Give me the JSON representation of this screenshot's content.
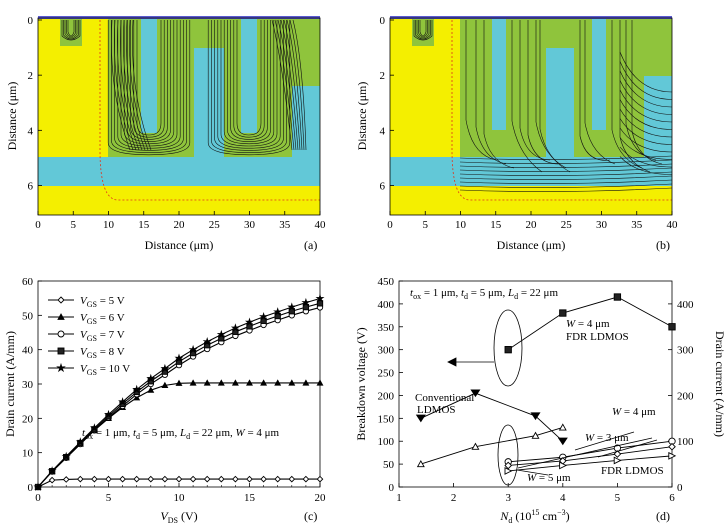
{
  "panels": {
    "a": {
      "letter": "(a)",
      "xlabel": "Distance (μm)",
      "ylabel": "Distance (μm)",
      "xticks": [
        "0",
        "5",
        "10",
        "15",
        "20",
        "25",
        "30",
        "35",
        "40"
      ],
      "yticks": [
        "0",
        "2",
        "4",
        "6"
      ]
    },
    "b": {
      "letter": "(b)",
      "xlabel": "Distance (μm)",
      "ylabel": "Distance (μm)",
      "xticks": [
        "0",
        "5",
        "10",
        "15",
        "20",
        "25",
        "30",
        "35",
        "40"
      ],
      "yticks": [
        "0",
        "2",
        "4",
        "6"
      ]
    },
    "c": {
      "letter": "(c)"
    },
    "d": {
      "letter": "(d)"
    }
  },
  "colors": {
    "silicon": "#f4ef00",
    "oxide": "#62c8d7",
    "drift": "#8fc43c",
    "contour": "#111111",
    "junction": "#e0331a"
  },
  "chart_data": [
    {
      "type": "line",
      "panel": "c",
      "xlabel_main": "V",
      "xlabel_sub": "DS",
      "xlabel_unit": " (V)",
      "ylabel": "Drain current (A/mm)",
      "xlim": [
        0,
        20
      ],
      "ylim": [
        0,
        60
      ],
      "xticks": [
        "0",
        "5",
        "10",
        "15",
        "20"
      ],
      "yticks": [
        "0",
        "10",
        "20",
        "30",
        "40",
        "50",
        "60"
      ],
      "legend_position": "top-left",
      "annotation": {
        "t1": "t",
        "s1": "ox",
        "v1": " = 1 μm, ",
        "t2": "t",
        "s2": "d",
        "v2": " = 5 μm, ",
        "t3": "L",
        "s3": "d",
        "v3": " = 22 μm, ",
        "t4": "W",
        "v4": " = 4 μm"
      },
      "x": [
        0,
        1,
        2,
        3,
        4,
        5,
        6,
        7,
        8,
        9,
        10,
        11,
        12,
        13,
        14,
        15,
        16,
        17,
        18,
        19,
        20
      ],
      "series": [
        {
          "name_main": "V",
          "name_sub": "GS",
          "name_val": " = 5 V",
          "marker": "diamond",
          "values": [
            0,
            2,
            2.2,
            2.3,
            2.3,
            2.3,
            2.3,
            2.3,
            2.3,
            2.3,
            2.3,
            2.3,
            2.3,
            2.3,
            2.3,
            2.3,
            2.3,
            2.3,
            2.3,
            2.3,
            2.3
          ]
        },
        {
          "name_main": "V",
          "name_sub": "GS",
          "name_val": " = 6 V",
          "marker": "triangle",
          "values": [
            0,
            4.5,
            8.5,
            12.5,
            16.5,
            20,
            23.2,
            26,
            28.2,
            29.6,
            30.2,
            30.3,
            30.3,
            30.3,
            30.3,
            30.3,
            30.3,
            30.3,
            30.3,
            30.3,
            30.3
          ]
        },
        {
          "name_main": "V",
          "name_sub": "GS",
          "name_val": " = 7 V",
          "marker": "circle",
          "values": [
            0,
            4.5,
            8.5,
            12.5,
            16.5,
            20.2,
            23.6,
            27,
            30,
            32.7,
            35.5,
            38,
            40.2,
            42.2,
            44,
            45.6,
            47.2,
            48.6,
            50,
            51.2,
            52.3
          ]
        },
        {
          "name_main": "V",
          "name_sub": "GS",
          "name_val": " = 8 V",
          "marker": "square",
          "values": [
            0,
            4.6,
            8.7,
            12.8,
            16.8,
            20.6,
            24.2,
            27.7,
            30.8,
            33.6,
            36.5,
            39,
            41.3,
            43.3,
            45.2,
            46.8,
            48.4,
            49.8,
            51.2,
            52.4,
            53.5
          ]
        },
        {
          "name_main": "V",
          "name_sub": "GS",
          "name_val": " = 10 V",
          "marker": "star",
          "values": [
            0,
            4.7,
            8.9,
            13.1,
            17.2,
            21.1,
            24.8,
            28.4,
            31.6,
            34.5,
            37.5,
            40,
            42.3,
            44.4,
            46.3,
            48,
            49.6,
            51,
            52.4,
            53.7,
            54.9
          ]
        }
      ]
    },
    {
      "type": "line",
      "panel": "d",
      "xlabel_main": "N",
      "xlabel_sub": "d",
      "xlabel_unit": " (10",
      "xlabel_sup": "15",
      "xlabel_end": " cm",
      "xlabel_sup2": "−3",
      "xlabel_close": ")",
      "ylabel": "Breakdown voltage (V)",
      "y2label": "Drain current (A/mm)",
      "xlim": [
        1,
        6
      ],
      "ylim": [
        0,
        450
      ],
      "y2lim": [
        0,
        450
      ],
      "xticks": [
        "1",
        "2",
        "3",
        "4",
        "5",
        "6"
      ],
      "yticks": [
        "0",
        "50",
        "100",
        "150",
        "200",
        "250",
        "300",
        "350",
        "400",
        "450"
      ],
      "y2ticks": [
        "0",
        "100",
        "200",
        "300",
        "400"
      ],
      "annotation": {
        "t1": "t",
        "s1": "ox",
        "v1": " = 1 μm, ",
        "t2": "t",
        "s2": "d",
        "v2": " = 5 μm, ",
        "t3": "L",
        "s3": "d",
        "v3": " = 22 μm"
      },
      "labels": {
        "fdr_bv_w": " = 4 μm",
        "fdr_bv_name": "FDR LDMOS",
        "conv_1": "Conventional",
        "conv_2": "LDMOS",
        "w4": " = 4 μm",
        "w3": " = 3 μm",
        "w5": " = 5 μm",
        "fdr_i": "FDR LDMOS",
        "wvar": "W"
      },
      "series": [
        {
          "name": "FDR LDMOS BV (W = 4 μm)",
          "axis": "left",
          "marker": "square",
          "x": [
            3,
            4,
            5,
            6
          ],
          "values": [
            300,
            380,
            415,
            350
          ]
        },
        {
          "name": "Conventional LDMOS BV",
          "axis": "left",
          "marker": "triangle-down",
          "x": [
            1.4,
            2.4,
            3.5,
            4
          ],
          "values": [
            150,
            205,
            155,
            100
          ]
        },
        {
          "name": "Conventional LDMOS current",
          "axis": "right",
          "marker": "triangle-open",
          "x": [
            1.4,
            2.4,
            3.5,
            4
          ],
          "values": [
            50,
            88,
            112,
            130
          ]
        },
        {
          "name": "FDR LDMOS current W = 4 μm",
          "axis": "right",
          "marker": "circle",
          "x": [
            3,
            4,
            5,
            6
          ],
          "values": [
            55,
            65,
            85,
            100
          ]
        },
        {
          "name": "FDR LDMOS current W = 3 μm",
          "axis": "right",
          "marker": "diamond",
          "x": [
            3,
            4,
            5,
            6
          ],
          "values": [
            47,
            57,
            72,
            88
          ]
        },
        {
          "name": "FDR LDMOS current W = 5 μm",
          "axis": "right",
          "marker": "triangle-right",
          "x": [
            3,
            4,
            5,
            6
          ],
          "values": [
            35,
            47,
            58,
            68
          ]
        }
      ]
    }
  ]
}
